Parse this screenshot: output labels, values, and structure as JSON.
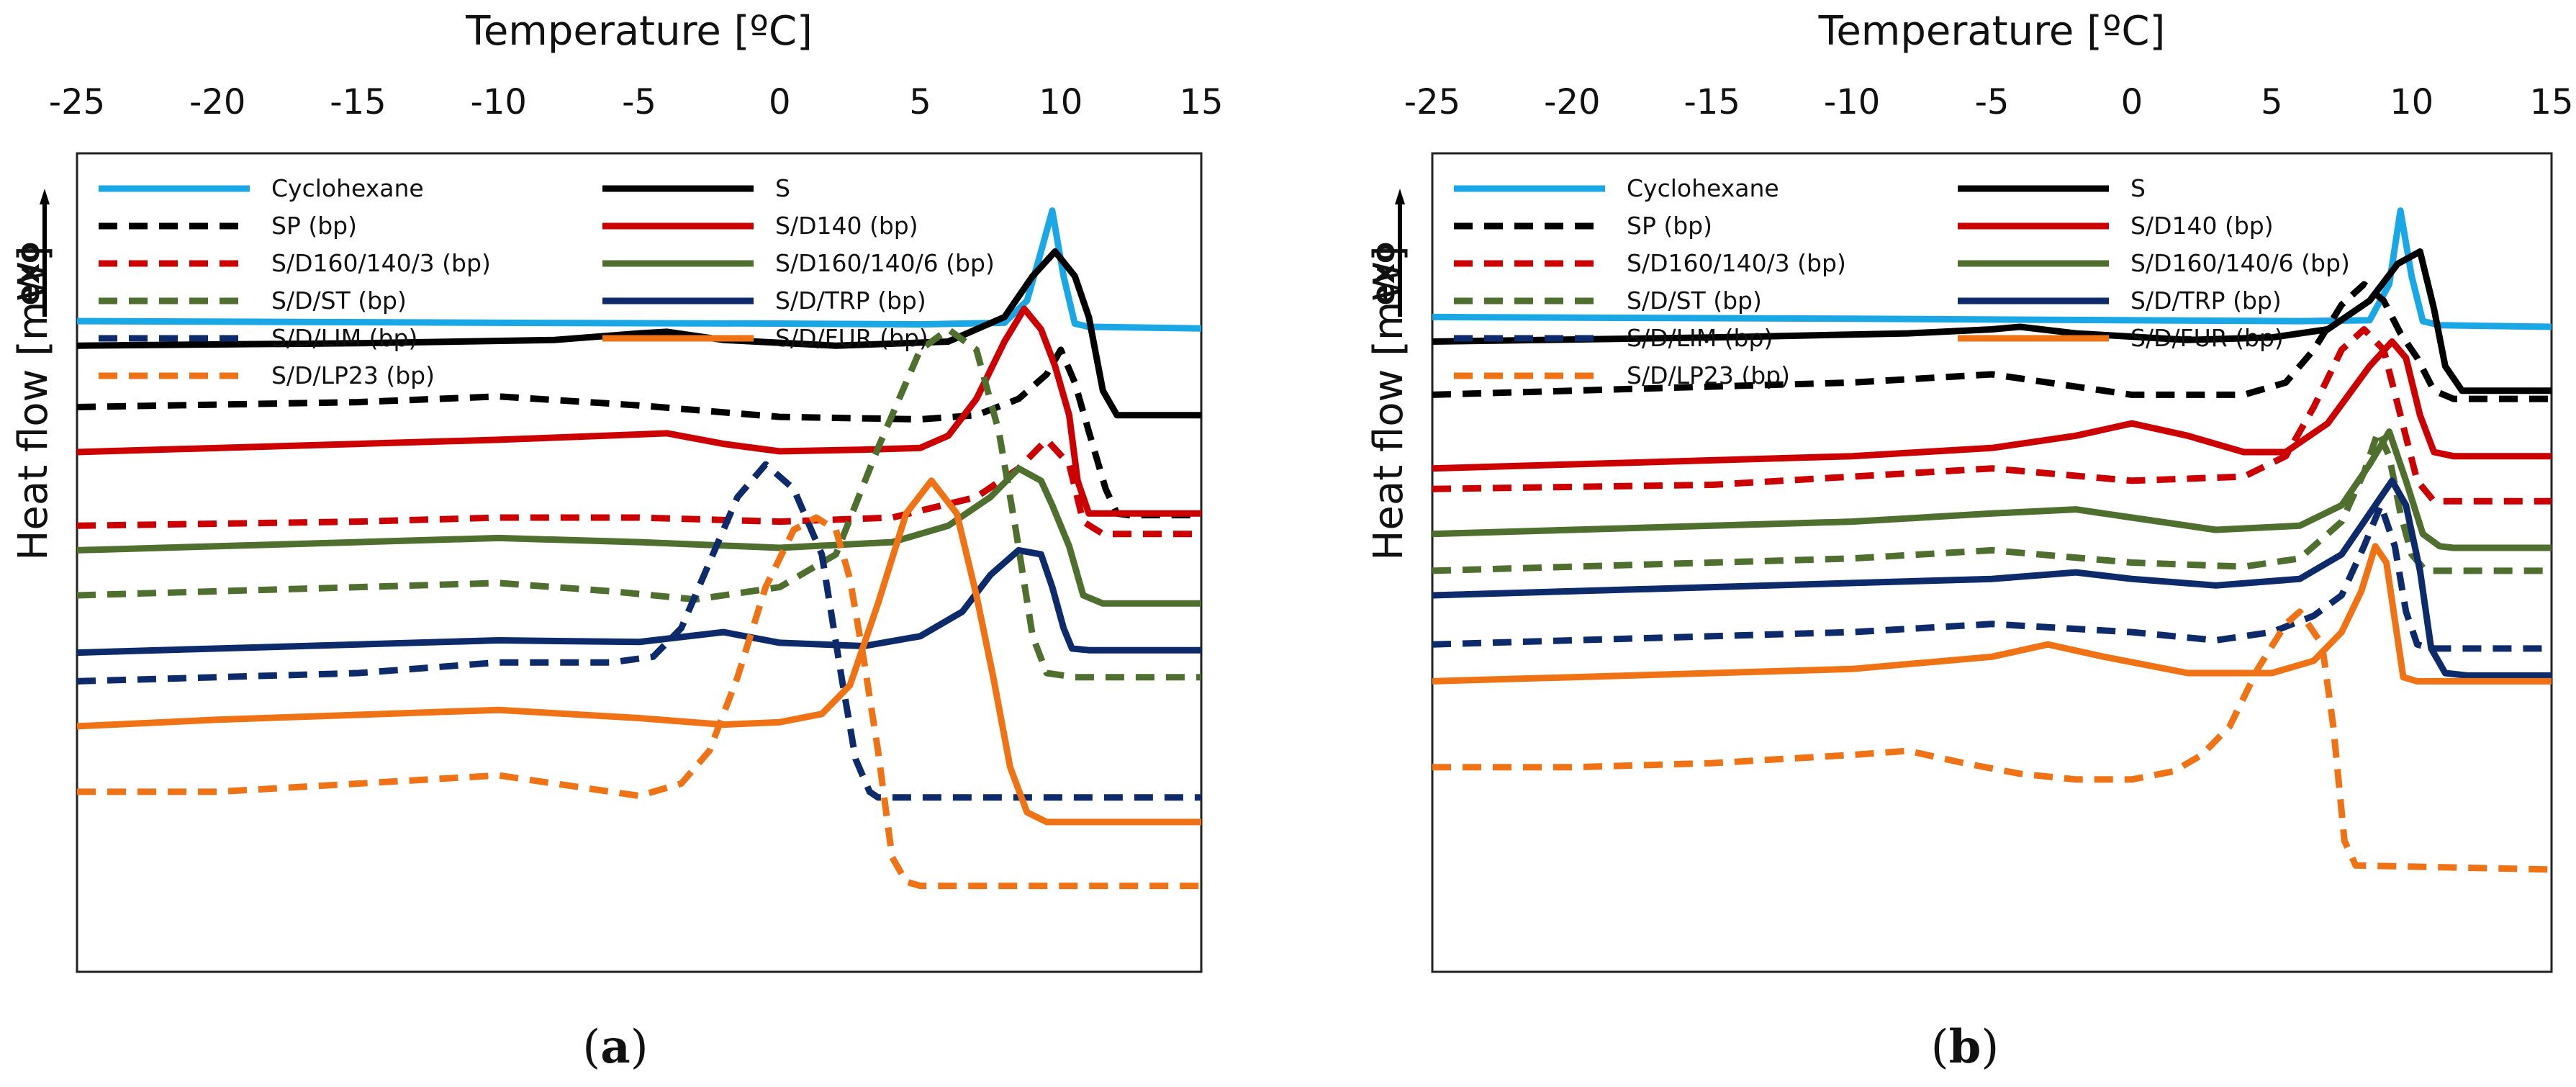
{
  "figure_labels": {
    "a": "a",
    "b": "b",
    "paren_open": "(",
    "paren_close": ")"
  },
  "chart_data": [
    {
      "type": "line",
      "panel": "a",
      "xlabel": "Temperature [ºC]",
      "ylabel": "Heat flow [mW]",
      "direction_label": "exo",
      "xlim": [
        -25,
        15
      ],
      "xticks": [
        -25,
        -20,
        -15,
        -10,
        -5,
        0,
        5,
        10,
        15
      ],
      "ylim": [
        0,
        100
      ],
      "grid": false,
      "legend_position": "top-left, two columns",
      "series": [
        {
          "name": "Cyclohexane",
          "color": "#1aa7e6",
          "dash": "solid",
          "x": [
            -25,
            -10,
            0,
            5,
            8,
            8.8,
            9.3,
            9.7,
            10.1,
            10.5,
            11,
            15
          ],
          "y": [
            79.5,
            79.3,
            79.2,
            79.1,
            79.3,
            82,
            88,
            93,
            85,
            79.2,
            78.8,
            78.6
          ]
        },
        {
          "name": "S",
          "color": "#000000",
          "dash": "solid",
          "x": [
            -25,
            -15,
            -8,
            -5,
            -4,
            -2,
            2,
            6,
            8,
            9,
            9.8,
            10.5,
            11,
            11.5,
            12,
            15
          ],
          "y": [
            76.5,
            76.8,
            77.2,
            78,
            78.2,
            77.2,
            76.5,
            77,
            80,
            85,
            88,
            85,
            80,
            71,
            68,
            68
          ]
        },
        {
          "name": "SP (bp)",
          "color": "#000000",
          "dash": "dashed",
          "x": [
            -25,
            -15,
            -10,
            -5,
            0,
            5,
            7,
            8.5,
            9.5,
            10,
            10.5,
            11,
            11.6,
            12,
            12.4,
            15
          ],
          "y": [
            69,
            69.6,
            70.3,
            69.2,
            67.8,
            67.5,
            68,
            70,
            73,
            76,
            72,
            66,
            59,
            56,
            55.8,
            55.8
          ]
        },
        {
          "name": "S/D140 (bp)",
          "color": "#cc0000",
          "dash": "solid",
          "x": [
            -25,
            -15,
            -10,
            -4,
            -2,
            0,
            3,
            5,
            6,
            7,
            8,
            8.7,
            9.3,
            9.8,
            10.3,
            10.6,
            11,
            15
          ],
          "y": [
            63.5,
            64.5,
            65,
            65.8,
            64.5,
            63.6,
            63.8,
            64,
            65.5,
            70,
            77,
            81,
            78.5,
            74,
            68,
            60,
            56,
            56
          ]
        },
        {
          "name": "S/D160/140/3  (bp)",
          "color": "#cc0000",
          "dash": "dashed",
          "x": [
            -25,
            -15,
            -10,
            -5,
            0,
            4,
            7,
            8.5,
            9.5,
            10.3,
            10.8,
            11.5,
            15
          ],
          "y": [
            54.5,
            55,
            55.5,
            55.5,
            55,
            55.5,
            58,
            61.5,
            65,
            62,
            55,
            53.5,
            53.5
          ]
        },
        {
          "name": "S/D160/140/6  (bp)",
          "color": "#4e6f2d",
          "dash": "solid",
          "x": [
            -25,
            -15,
            -10,
            -5,
            0,
            4,
            6,
            7.5,
            8.5,
            9.3,
            9.7,
            10.3,
            10.8,
            11.5,
            15
          ],
          "y": [
            51.5,
            52.5,
            53,
            52.5,
            51.8,
            52.5,
            54.5,
            58,
            61.5,
            60,
            57,
            52,
            46,
            45,
            45
          ]
        },
        {
          "name": "S/D/ST (bp)",
          "color": "#4e6f2d",
          "dash": "dashed",
          "x": [
            -25,
            -15,
            -10,
            -6,
            -3,
            0,
            2,
            3.5,
            5,
            6,
            7,
            7.8,
            8.4,
            9,
            9.5,
            10.5,
            15
          ],
          "y": [
            46,
            47,
            47.5,
            46.5,
            45.5,
            47,
            51,
            64,
            76,
            78.5,
            76,
            66,
            54,
            41,
            36.5,
            36,
            36
          ]
        },
        {
          "name": "S/D/TRP (bp)",
          "color": "#0d2a6a",
          "dash": "solid",
          "x": [
            -25,
            -15,
            -10,
            -5,
            -2,
            0,
            3,
            5,
            6.5,
            7.5,
            8.5,
            9.3,
            9.7,
            10.1,
            10.4,
            11,
            15
          ],
          "y": [
            39,
            40,
            40.5,
            40.3,
            41.5,
            40.2,
            39.8,
            41,
            44,
            48.5,
            51.5,
            51,
            47,
            42,
            39.5,
            39.3,
            39.3
          ]
        },
        {
          "name": "S/D/LIM (bp)",
          "color": "#0d2a6a",
          "dash": "dashed",
          "x": [
            -25,
            -15,
            -10,
            -6,
            -4.5,
            -3.5,
            -2.5,
            -1.5,
            -0.5,
            0.5,
            1.5,
            2.2,
            2.7,
            3.2,
            3.5,
            4,
            6,
            15
          ],
          "y": [
            35.5,
            36.5,
            37.8,
            37.8,
            38.5,
            42,
            50,
            58,
            62,
            59,
            51,
            36,
            26,
            22,
            21.3,
            21.3,
            21.3,
            21.3
          ]
        },
        {
          "name": "S/D/FUR (bp)",
          "color": "#ef7215",
          "dash": "solid",
          "x": [
            -25,
            -20,
            -10,
            -5,
            -2,
            0,
            1.5,
            2.5,
            3.5,
            4.5,
            5.4,
            6.3,
            7,
            7.6,
            8.2,
            8.8,
            9.5,
            10.5,
            15
          ],
          "y": [
            30,
            30.8,
            32,
            31,
            30.2,
            30.5,
            31.5,
            35,
            45,
            56,
            60,
            56,
            46,
            36,
            25,
            19.5,
            18.3,
            18.3,
            18.3
          ]
        },
        {
          "name": "S/D/LP23 (bp)",
          "color": "#ef7215",
          "dash": "dashed",
          "x": [
            -25,
            -20,
            -15,
            -10,
            -7,
            -5,
            -3.5,
            -2.5,
            -1.5,
            -0.5,
            0.5,
            1.3,
            2,
            2.5,
            3,
            3.5,
            4,
            4.5,
            5,
            6,
            15
          ],
          "y": [
            22,
            22,
            23,
            24,
            22.5,
            21.5,
            23,
            27,
            36,
            47,
            54,
            55.5,
            54,
            48,
            38,
            27,
            14,
            11,
            10.5,
            10.5,
            10.5
          ]
        }
      ]
    },
    {
      "type": "line",
      "panel": "b",
      "xlabel": "Temperature [ºC]",
      "ylabel": "Heat flow [mW]",
      "direction_label": "exo",
      "xlim": [
        -25,
        15
      ],
      "xticks": [
        -25,
        -20,
        -15,
        -10,
        -5,
        0,
        5,
        10,
        15
      ],
      "ylim": [
        0,
        100
      ],
      "grid": false,
      "legend_position": "top-left, two columns",
      "series": [
        {
          "name": "Cyclohexane",
          "color": "#1aa7e6",
          "dash": "solid",
          "x": [
            -25,
            -10,
            0,
            6,
            8.5,
            9.2,
            9.6,
            10,
            10.4,
            11,
            15
          ],
          "y": [
            80,
            79.8,
            79.6,
            79.5,
            79.6,
            84,
            93,
            85,
            79.5,
            79,
            78.8
          ]
        },
        {
          "name": "S",
          "color": "#000000",
          "dash": "solid",
          "x": [
            -25,
            -15,
            -8,
            -5,
            -4,
            -2,
            2,
            5,
            7,
            8.5,
            9.5,
            10.3,
            10.8,
            11.2,
            11.8,
            12.5,
            15
          ],
          "y": [
            77,
            77.5,
            78,
            78.5,
            78.8,
            78,
            77.2,
            77.5,
            78.5,
            82,
            86.5,
            88,
            81,
            74,
            71,
            71,
            71
          ]
        },
        {
          "name": "SP (bp)",
          "color": "#000000",
          "dash": "dashed",
          "x": [
            -25,
            -15,
            -10,
            -5,
            0,
            4,
            5.5,
            6.5,
            7.5,
            8.3,
            9,
            9.6,
            10.2,
            10.8,
            11.5,
            15
          ],
          "y": [
            70.5,
            71.5,
            72,
            73,
            70.5,
            70.5,
            72,
            76,
            81.5,
            84,
            82,
            78,
            75,
            71,
            70,
            70
          ]
        },
        {
          "name": "S/D140 (bp)",
          "color": "#cc0000",
          "dash": "solid",
          "x": [
            -25,
            -15,
            -10,
            -5,
            -2,
            0,
            2,
            4,
            5.5,
            7,
            8.5,
            9.3,
            9.8,
            10.3,
            10.8,
            11.5,
            15
          ],
          "y": [
            61.5,
            62.5,
            63,
            64,
            65.5,
            67,
            65.5,
            63.5,
            63.5,
            67,
            74,
            77,
            75,
            68,
            63.5,
            63,
            63
          ]
        },
        {
          "name": "S/D160/140/3  (bp)",
          "color": "#cc0000",
          "dash": "dashed",
          "x": [
            -25,
            -15,
            -10,
            -5,
            0,
            4,
            5.5,
            6.5,
            7.5,
            8.3,
            9,
            9.6,
            10.2,
            10.8,
            11.5,
            15
          ],
          "y": [
            59,
            59.5,
            60.5,
            61.5,
            60,
            60.5,
            63,
            69,
            76,
            78.5,
            76,
            68,
            60,
            57.5,
            57.5,
            57.5
          ]
        },
        {
          "name": "S/D160/140/6  (bp)",
          "color": "#4e6f2d",
          "dash": "solid",
          "x": [
            -25,
            -15,
            -10,
            -5,
            -2,
            0,
            3,
            6,
            7.5,
            8.5,
            9.2,
            9.8,
            10.4,
            11,
            11.5,
            15
          ],
          "y": [
            53.5,
            54.5,
            55,
            56,
            56.5,
            55.5,
            54,
            54.5,
            57,
            62,
            66,
            60,
            53.5,
            52,
            51.8,
            51.8
          ]
        },
        {
          "name": "S/D/ST (bp)",
          "color": "#4e6f2d",
          "dash": "dashed",
          "x": [
            -25,
            -15,
            -10,
            -5,
            0,
            4,
            6,
            7.5,
            8.3,
            8.8,
            9.2,
            9.6,
            10,
            10.5,
            11,
            15
          ],
          "y": [
            49,
            50,
            50.5,
            51.5,
            50,
            49.5,
            50.5,
            55,
            61,
            66,
            63,
            56,
            51,
            49,
            49,
            49
          ]
        },
        {
          "name": "S/D/TRP (bp)",
          "color": "#0d2a6a",
          "dash": "solid",
          "x": [
            -25,
            -15,
            -10,
            -5,
            -2,
            0,
            3,
            6,
            7.5,
            8.5,
            9.3,
            9.8,
            10.3,
            10.7,
            11.2,
            12,
            15
          ],
          "y": [
            46,
            47,
            47.5,
            48,
            48.8,
            48,
            47.2,
            48,
            51,
            56,
            60,
            57,
            49,
            39.5,
            36.5,
            36.2,
            36.2
          ]
        },
        {
          "name": "S/D/LIM (bp)",
          "color": "#0d2a6a",
          "dash": "dashed",
          "x": [
            -25,
            -15,
            -10,
            -5,
            0,
            3,
            5,
            6.5,
            7.5,
            8.3,
            8.9,
            9.4,
            9.8,
            10.2,
            10.7,
            11.5,
            15
          ],
          "y": [
            40,
            41,
            41.5,
            42.5,
            41.5,
            40.5,
            41.5,
            43.5,
            46,
            52,
            57,
            52,
            44,
            40,
            39.5,
            39.5,
            39.5
          ]
        },
        {
          "name": "S/D/FUR (bp)",
          "color": "#ef7215",
          "dash": "solid",
          "x": [
            -25,
            -15,
            -10,
            -5,
            -3,
            -1,
            2,
            5,
            6.5,
            7.5,
            8.2,
            8.7,
            9.1,
            9.4,
            9.7,
            10.2,
            15
          ],
          "y": [
            35.5,
            36.5,
            37,
            38.5,
            40,
            38.5,
            36.5,
            36.5,
            38,
            41.5,
            46.5,
            52,
            50,
            43,
            36,
            35.5,
            35.5
          ]
        },
        {
          "name": "S/D/LP23 (bp)",
          "color": "#ef7215",
          "dash": "dashed",
          "x": [
            -25,
            -20,
            -15,
            -10,
            -8,
            -6,
            -4,
            -2,
            0,
            1.5,
            2.5,
            3.5,
            4.5,
            5.5,
            6,
            6.8,
            7.2,
            7.6,
            8,
            15
          ],
          "y": [
            25,
            25,
            25.5,
            26.5,
            27,
            25.5,
            24.2,
            23.5,
            23.5,
            24.5,
            26.5,
            30,
            37,
            42.5,
            44,
            40,
            30,
            16,
            13,
            12.5
          ]
        }
      ]
    }
  ]
}
